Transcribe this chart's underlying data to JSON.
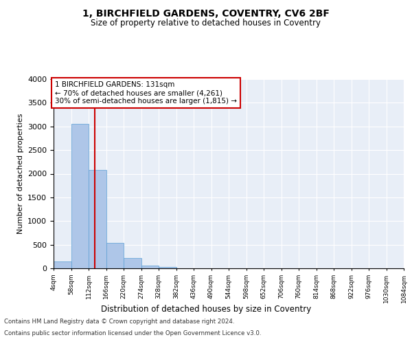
{
  "title": "1, BIRCHFIELD GARDENS, COVENTRY, CV6 2BF",
  "subtitle": "Size of property relative to detached houses in Coventry",
  "xlabel": "Distribution of detached houses by size in Coventry",
  "ylabel": "Number of detached properties",
  "footer_line1": "Contains HM Land Registry data © Crown copyright and database right 2024.",
  "footer_line2": "Contains public sector information licensed under the Open Government Licence v3.0.",
  "annotation_line1": "1 BIRCHFIELD GARDENS: 131sqm",
  "annotation_line2": "← 70% of detached houses are smaller (4,261)",
  "annotation_line3": "30% of semi-detached houses are larger (1,815) →",
  "property_size": 131,
  "bar_color": "#aec6e8",
  "bar_edge_color": "#5a9fd4",
  "vline_color": "#cc0000",
  "annotation_box_color": "#cc0000",
  "background_color": "#e8eef7",
  "bins": [
    4,
    58,
    112,
    166,
    220,
    274,
    328,
    382,
    436,
    490,
    544,
    598,
    652,
    706,
    760,
    814,
    868,
    922,
    976,
    1030,
    1084
  ],
  "bin_labels": [
    "4sqm",
    "58sqm",
    "112sqm",
    "166sqm",
    "220sqm",
    "274sqm",
    "328sqm",
    "382sqm",
    "436sqm",
    "490sqm",
    "544sqm",
    "598sqm",
    "652sqm",
    "706sqm",
    "760sqm",
    "814sqm",
    "868sqm",
    "922sqm",
    "976sqm",
    "1030sqm",
    "1084sqm"
  ],
  "counts": [
    150,
    3050,
    2080,
    540,
    220,
    60,
    30,
    0,
    0,
    0,
    0,
    0,
    0,
    0,
    0,
    0,
    0,
    0,
    0,
    0
  ],
  "ylim": [
    0,
    4000
  ],
  "yticks": [
    0,
    500,
    1000,
    1500,
    2000,
    2500,
    3000,
    3500,
    4000
  ]
}
